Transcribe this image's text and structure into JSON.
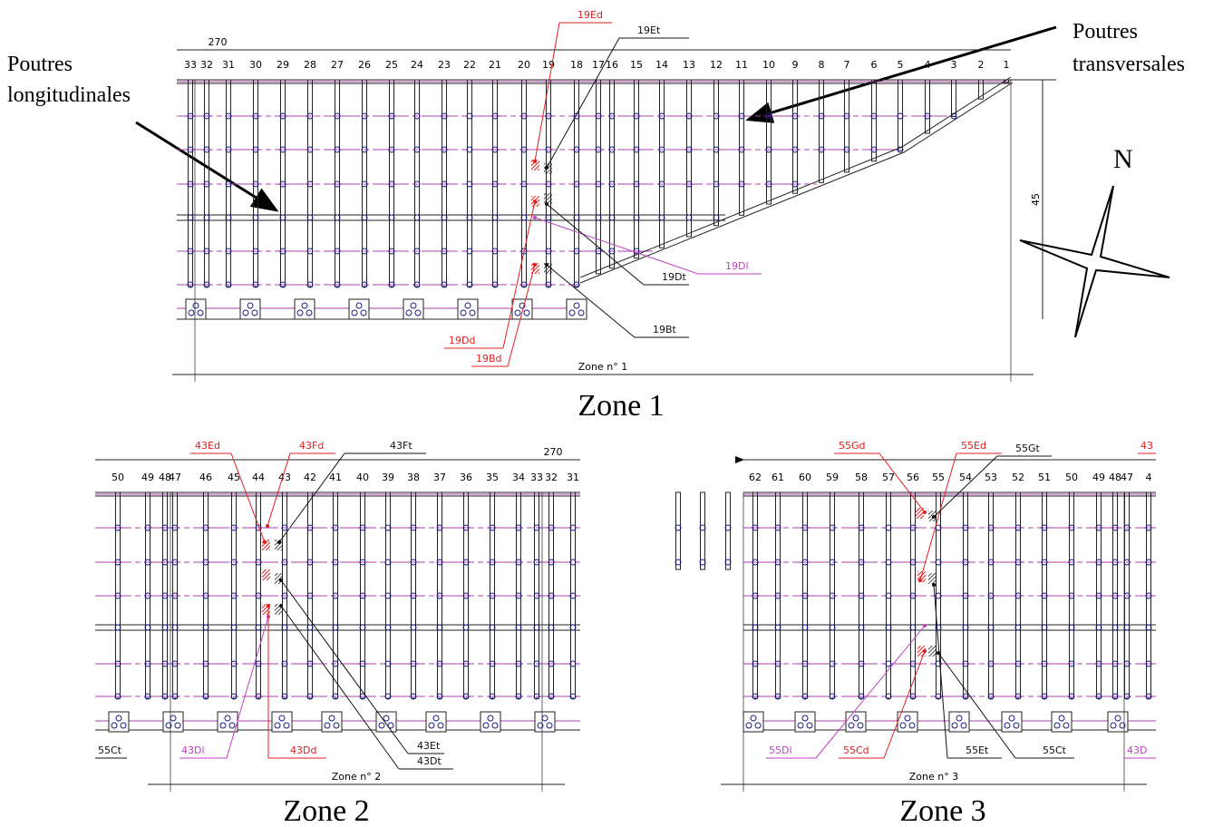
{
  "labels": {
    "longitudinal": [
      "Poutres",
      "longitudinales"
    ],
    "transversal": [
      "Poutres",
      "transversales"
    ],
    "north": "N"
  },
  "zones": [
    {
      "title": "Zone 1",
      "span": "270",
      "height": "45",
      "dimension": "Zone n° 1",
      "beams": [
        33,
        32,
        31,
        30,
        29,
        28,
        27,
        26,
        25,
        24,
        23,
        22,
        21,
        20,
        19,
        18,
        17,
        16,
        15,
        14,
        13,
        12,
        11,
        10,
        9,
        8,
        7,
        6,
        5,
        4,
        3,
        2,
        1
      ],
      "callouts": [
        {
          "text": "19Ed",
          "color": "#e0201e"
        },
        {
          "text": "19Et",
          "color": "#111111"
        },
        {
          "text": "19Dl",
          "color": "#c040c0"
        },
        {
          "text": "19Dt",
          "color": "#111111"
        },
        {
          "text": "19Dd",
          "color": "#e0201e"
        },
        {
          "text": "19Bd",
          "color": "#e0201e"
        },
        {
          "text": "19Bt",
          "color": "#111111"
        }
      ]
    },
    {
      "title": "Zone 2",
      "span": "270",
      "dimension": "Zone n° 2",
      "beams": [
        50,
        49,
        48,
        47,
        46,
        45,
        44,
        43,
        42,
        41,
        40,
        39,
        38,
        37,
        36,
        35,
        34,
        33,
        32,
        31
      ],
      "callouts": [
        {
          "text": "43Ed",
          "color": "#e0201e"
        },
        {
          "text": "43Fd",
          "color": "#e0201e"
        },
        {
          "text": "43Ft",
          "color": "#111111"
        },
        {
          "text": "43Et",
          "color": "#111111"
        },
        {
          "text": "43Dt",
          "color": "#111111"
        },
        {
          "text": "43Dl",
          "color": "#c040c0"
        },
        {
          "text": "43Dd",
          "color": "#e0201e"
        },
        {
          "text": "55Ct",
          "color": "#111111"
        }
      ]
    },
    {
      "title": "Zone 3",
      "dimension": "Zone n° 3",
      "beams": [
        62,
        61,
        60,
        59,
        58,
        57,
        56,
        55,
        54,
        53,
        52,
        51,
        50,
        49,
        48,
        47,
        4
      ],
      "callouts": [
        {
          "text": "55Gd",
          "color": "#e0201e"
        },
        {
          "text": "55Ed",
          "color": "#e0201e"
        },
        {
          "text": "55Gt",
          "color": "#111111"
        },
        {
          "text": "43",
          "color": "#e0201e"
        },
        {
          "text": "55Dl",
          "color": "#c040c0"
        },
        {
          "text": "55Cd",
          "color": "#e0201e"
        },
        {
          "text": "55Et",
          "color": "#111111"
        },
        {
          "text": "55Ct",
          "color": "#111111"
        },
        {
          "text": "43D",
          "color": "#c040c0"
        }
      ]
    }
  ]
}
